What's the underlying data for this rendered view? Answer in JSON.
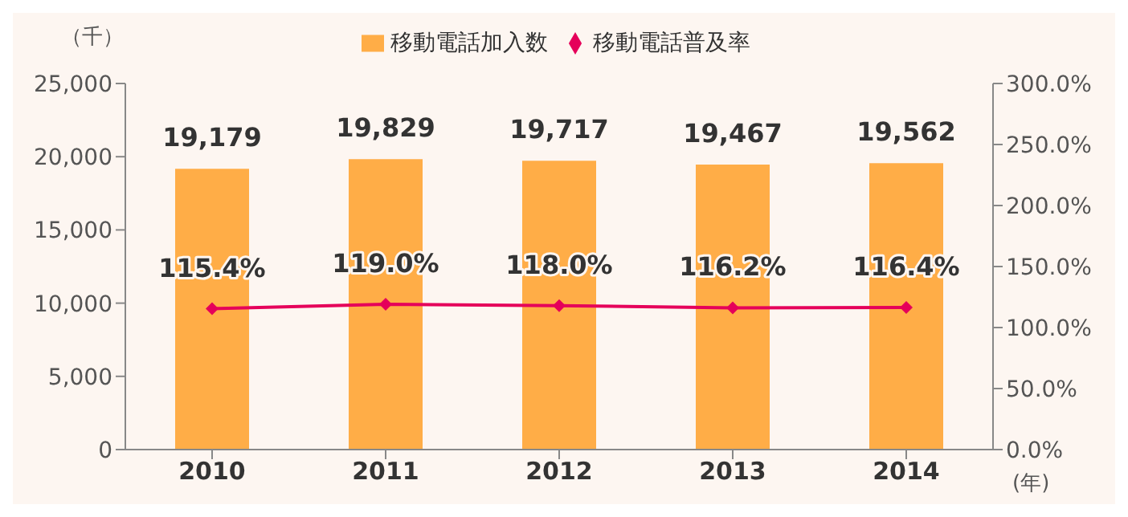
{
  "chart_data": {
    "type": "bar",
    "categories": [
      "2010",
      "2011",
      "2012",
      "2013",
      "2014"
    ],
    "ylabel": "（千）",
    "xlabel": "(年)",
    "series": [
      {
        "name": "移動電話加入数",
        "color": "#ffad47",
        "values": [
          19179,
          19829,
          19717,
          19467,
          19562
        ],
        "value_labels": [
          "19,179",
          "19,829",
          "19,717",
          "19,467",
          "19,562"
        ]
      },
      {
        "name": "移動電話普及率",
        "type": "line",
        "axis": "y2",
        "color": "#e5005a",
        "marker": "diamond",
        "values": [
          115.4,
          119.0,
          118.0,
          116.2,
          116.4
        ],
        "value_labels": [
          "115.4%",
          "119.0%",
          "118.0%",
          "116.2%",
          "116.4%"
        ]
      }
    ],
    "ylim": [
      0,
      25000
    ],
    "yticks": [
      {
        "value": 0,
        "label": "0"
      },
      {
        "value": 5000,
        "label": "5,000"
      },
      {
        "value": 10000,
        "label": "10,000"
      },
      {
        "value": 15000,
        "label": "15,000"
      },
      {
        "value": 20000,
        "label": "20,000"
      },
      {
        "value": 25000,
        "label": "25,000"
      }
    ],
    "y2lim": [
      0,
      300
    ],
    "y2ticks": [
      {
        "value": 0,
        "label": "0.0%"
      },
      {
        "value": 50,
        "label": "50.0%"
      },
      {
        "value": 100,
        "label": "100.0%"
      },
      {
        "value": 150,
        "label": "150.0%"
      },
      {
        "value": 200,
        "label": "200.0%"
      },
      {
        "value": 250,
        "label": "250.0%"
      },
      {
        "value": 300,
        "label": "300.0%"
      }
    ],
    "grid": false,
    "legend": "top"
  }
}
